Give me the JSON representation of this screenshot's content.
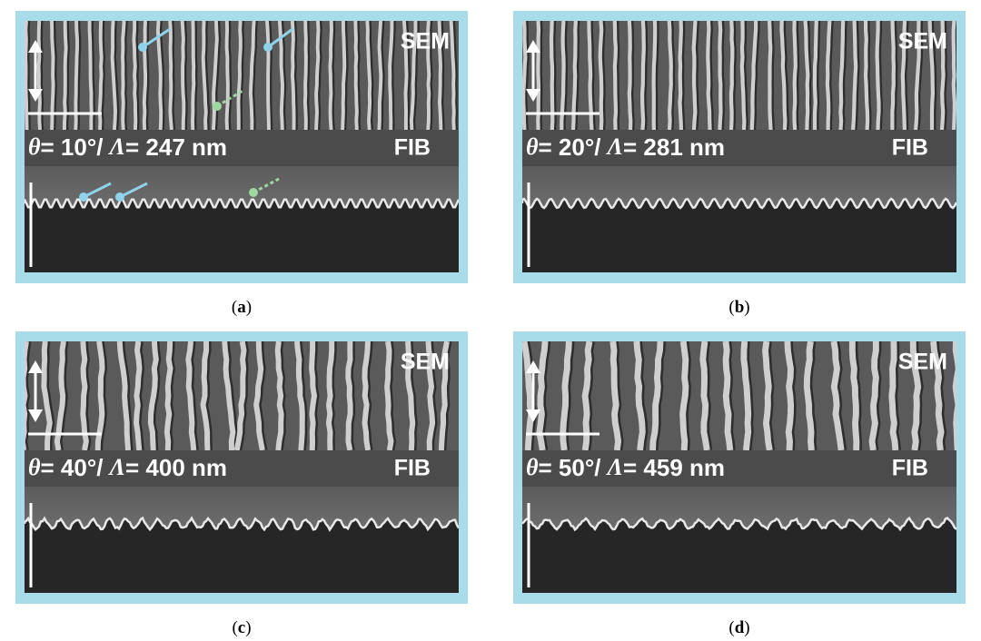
{
  "panels": [
    {
      "sem": "SEM",
      "fib": "FIB",
      "theta": "θ",
      "angle": "= 10°/ ",
      "lambda": "Λ",
      "period": "= 247 nm",
      "caption": [
        "(",
        "a",
        ")"
      ]
    },
    {
      "sem": "SEM",
      "fib": "FIB",
      "theta": "θ",
      "angle": "= 20°/ ",
      "lambda": "Λ",
      "period": "= 281 nm",
      "caption": [
        "(",
        "b",
        ")"
      ]
    },
    {
      "sem": "SEM",
      "fib": "FIB",
      "theta": "θ",
      "angle": "= 40°/ ",
      "lambda": "Λ",
      "period": "= 400 nm",
      "caption": [
        "(",
        "c",
        ")"
      ]
    },
    {
      "sem": "SEM",
      "fib": "FIB",
      "theta": "θ",
      "angle": "= 50°/ ",
      "lambda": "Λ",
      "period": "= 459 nm",
      "caption": [
        "(",
        "d",
        ")"
      ]
    }
  ]
}
